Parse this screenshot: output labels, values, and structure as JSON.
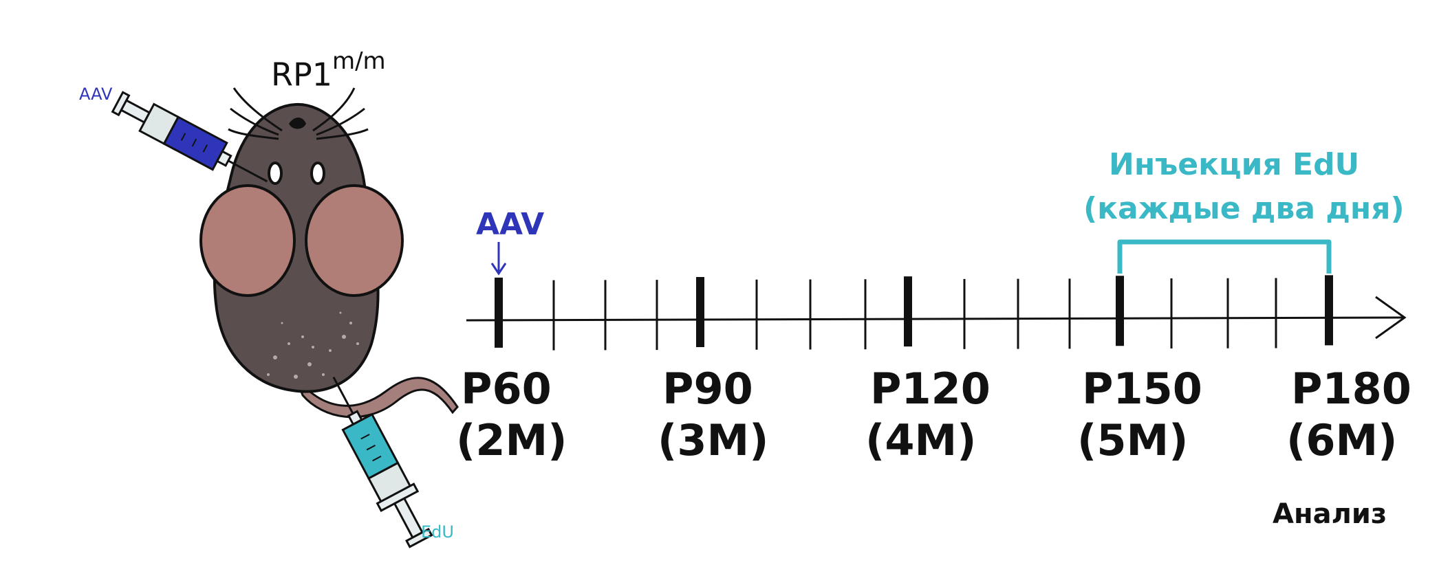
{
  "mouse": {
    "genotype": "RP1",
    "genotype_sup": "m/m",
    "syringe_top_label": "AAV",
    "syringe_bottom_label": "EdU"
  },
  "timeline": {
    "aav_label": "AAV",
    "edu_label_line1": "Инъекция EdU",
    "edu_label_line2": "(каждые два дня)",
    "analysis_label": "Анализ",
    "major": [
      {
        "day": "P60",
        "month": "(2M)"
      },
      {
        "day": "P90",
        "month": "(3M)"
      },
      {
        "day": "P120",
        "month": "(4M)"
      },
      {
        "day": "P150",
        "month": "(5M)"
      },
      {
        "day": "P180",
        "month": "(6M)"
      }
    ]
  },
  "colors": {
    "aav": "#2f35b8",
    "edu": "#3bb8c6",
    "body": "#5a4e4f",
    "ears": "#b07d77",
    "tail": "#a57f7c"
  }
}
